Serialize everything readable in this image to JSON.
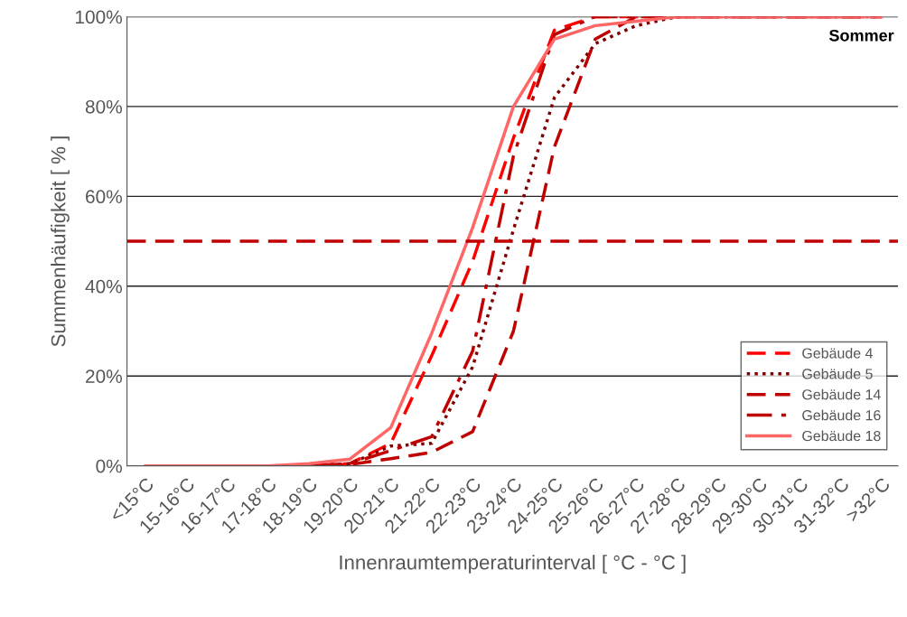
{
  "chart_data": {
    "type": "line",
    "xlabel": "Innenraumtemperaturinterval [ °C - °C ]",
    "ylabel": "Summenhäufigkeit [ % ]",
    "categories": [
      "<15°C",
      "15-16°C",
      "16-17°C",
      "17-18°C",
      "18-19°C",
      "19-20°C",
      "20-21°C",
      "21-22°C",
      "22-23°C",
      "23-24°C",
      "24-25°C",
      "25-26°C",
      "26-27°C",
      "27-28°C",
      "28-29°C",
      "29-30°C",
      "30-31°C",
      "31-32°C",
      ">32°C"
    ],
    "series": [
      {
        "name": "Gebäude 4",
        "color": "#ff0000",
        "line_style": "dashed",
        "values": [
          0,
          0,
          0,
          0,
          0,
          0.5,
          5,
          24.5,
          45.5,
          73,
          97,
          100,
          100,
          100,
          100,
          100,
          100,
          100,
          100
        ]
      },
      {
        "name": "Gebäude 5",
        "color": "#7f0000",
        "line_style": "dotted",
        "values": [
          null,
          null,
          null,
          0,
          0,
          0.5,
          4.4,
          5,
          22,
          52.6,
          82,
          94,
          98,
          100,
          100,
          100,
          100,
          100,
          100
        ]
      },
      {
        "name": "Gebäude 14",
        "color": "#c00000",
        "line_style": "dashed",
        "values": [
          null,
          null,
          null,
          0,
          0,
          0.3,
          1.6,
          3,
          7.6,
          30,
          71,
          95,
          100,
          100,
          100,
          100,
          100,
          100,
          100
        ]
      },
      {
        "name": "Gebäude 16",
        "color": "#c00000",
        "line_style": "dashdot",
        "values": [
          null,
          null,
          null,
          0,
          0,
          0.5,
          3.4,
          6.5,
          25.5,
          69,
          96,
          100,
          100,
          100,
          100,
          100,
          100,
          100,
          100
        ]
      },
      {
        "name": "Gebäude 18",
        "color": "#ff6666",
        "line_style": "solid",
        "values": [
          0,
          0,
          0,
          0,
          0.5,
          1.5,
          8.5,
          29.5,
          53,
          80,
          95,
          98,
          99,
          100,
          100,
          100,
          100,
          100,
          100
        ]
      }
    ],
    "ylim": [
      0,
      100
    ],
    "yticks": [
      {
        "value": 0,
        "label": "0%"
      },
      {
        "value": 20,
        "label": "20%"
      },
      {
        "value": 40,
        "label": "40%"
      },
      {
        "value": 60,
        "label": "60%"
      },
      {
        "value": 80,
        "label": "80%"
      },
      {
        "value": 100,
        "label": "100%"
      }
    ],
    "ref_lines": [
      {
        "axis": "y",
        "value": 50,
        "color": "#c00000",
        "line_style": "dashed"
      }
    ],
    "annotations": [
      "Sommer"
    ],
    "grid": "y",
    "legend": "bottom right"
  }
}
